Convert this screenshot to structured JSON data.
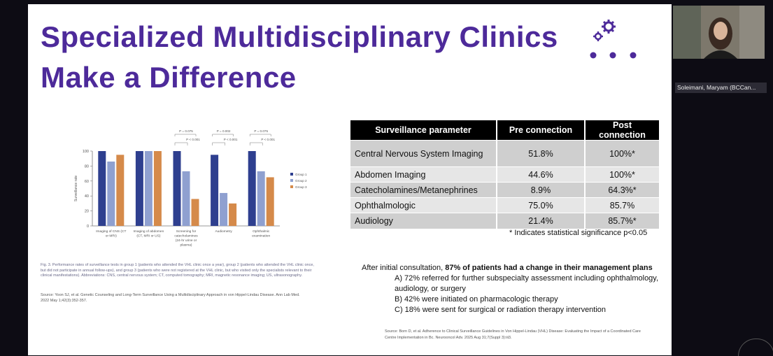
{
  "slide": {
    "title_line1": "Specialized Multidisciplinary Clinics",
    "title_line2": "Make a Difference",
    "accent_color": "#4d2a9a",
    "decor_icon": "gears-icon"
  },
  "chart_data": {
    "type": "bar",
    "ylabel": "Surveillance rate",
    "ylim": [
      0,
      100
    ],
    "yticks": [
      0,
      20,
      40,
      60,
      80,
      100
    ],
    "categories": [
      "Imaging of CNS (CT or MRI)",
      "Imaging of abdomen (CT, MRI or US)",
      "Screening for catecholamines (24-hr urine or plasma)",
      "Audiometry",
      "Ophthalmic examination"
    ],
    "series": [
      {
        "name": "Group 1",
        "color": "#2e3f8f",
        "values": [
          100,
          100,
          100,
          95,
          100
        ]
      },
      {
        "name": "Group 2",
        "color": "#8fa0d0",
        "values": [
          86,
          100,
          73,
          44,
          73
        ]
      },
      {
        "name": "Group 3",
        "color": "#d58a4a",
        "values": [
          95,
          100,
          36,
          30,
          65
        ]
      }
    ],
    "pvalues": [
      {
        "cat": 2,
        "top": "P = 0.075",
        "bottom": "P < 0.001"
      },
      {
        "cat": 3,
        "top": "P = 0.002",
        "bottom": "P < 0.001"
      },
      {
        "cat": 4,
        "top": "P = 0.075",
        "bottom": "P < 0.001"
      }
    ]
  },
  "figure": {
    "caption": "Fig. 3. Performance rates of surveillance tests in group 1 (patients who attended the VHL clinic once a year), group 2 (patients who attended the VHL clinic once, but did not participate in annual follow-ups), and group 3 (patients who were not registered at the VHL clinic, but who visited only the specialists relevant to their clinical manifestations). Abbreviations: CNS, central nervous system; CT, computed tomography; MRI, magnetic resonance imaging; US, ultrasonography.",
    "source": "Source: Yoon SJ, et al. Genetic Counseling and Long-Term Surveillance Using a Multidisciplinary Approach in von Hippel-Lindau Disease. Ann Lab Med. 2022 May 1;42(3):352-357."
  },
  "table": {
    "headers": [
      "Surveillance parameter",
      "Pre connection",
      "Post connection"
    ],
    "rows": [
      {
        "param": "Central Nervous System Imaging",
        "pre": "51.8%",
        "post": "100%*"
      },
      {
        "param": "Abdomen Imaging",
        "pre": "44.6%",
        "post": "100%*"
      },
      {
        "param": "Catecholamines/Metanephrines",
        "pre": "8.9%",
        "post": "64.3%*"
      },
      {
        "param": "Ophthalmologic",
        "pre": "75.0%",
        "post": "85.7%"
      },
      {
        "param": "Audiology",
        "pre": "21.4%",
        "post": "85.7%*"
      }
    ],
    "significance_note": "* Indicates statistical significance p<0.05"
  },
  "after": {
    "intro": "After initial consultation, ",
    "intro_bold": "87% of patients had a change in their management plans",
    "items": [
      "A) 72% referred for further subspecialty assessment including ophthalmology, audiology, or surgery",
      "B) 42% were initiated on pharmacologic therapy",
      "C) 18% were sent for surgical or radiation therapy intervention"
    ],
    "source": "Source: Born D, et al. Adherence to Clinical Surveillance Guidelines in Von Hippel-Lindau (VHL) Disease: Evaluating the Impact of a Coordinated Care Centre Implementation in Bc. Neurooncol Adv. 2025 Aug 31;7(Suppl 3):iii3."
  },
  "participant": {
    "name": "Soleimani, Maryam (BCCan..."
  }
}
